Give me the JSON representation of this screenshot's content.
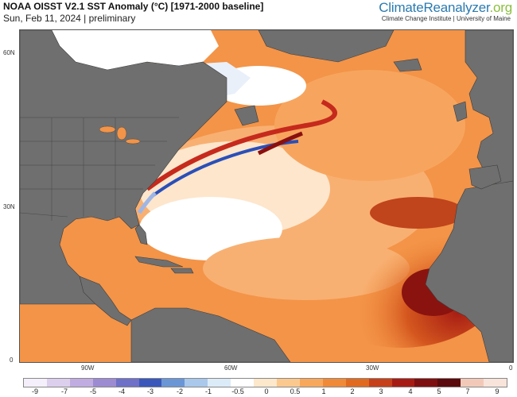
{
  "header": {
    "title": "NOAA OISST V2.1 SST Anomaly (°C) [1971-2000 baseline]",
    "subtitle": "Sun, Feb 11, 2024 | preliminary",
    "brand_main": "ClimateReanalyzer",
    "brand_suffix": ".org",
    "brand_sub": "Climate Change Institute | University of Maine"
  },
  "map": {
    "latitude_labels": [
      "60N",
      "30N",
      "0"
    ],
    "longitude_labels": [
      "90W",
      "60W",
      "30W",
      "0"
    ],
    "land_color": "#6f6f6f",
    "ice_color": "#ffffff"
  },
  "legend": {
    "labels": [
      "-9",
      "-7",
      "-5",
      "-4",
      "-3",
      "-2",
      "-1",
      "-0.5",
      "0",
      "0.5",
      "1",
      "2",
      "3",
      "4",
      "5",
      "7",
      "9"
    ],
    "colors": [
      "#f4effa",
      "#dccfee",
      "#c0ace0",
      "#9c8bd2",
      "#6f70c8",
      "#3a58bb",
      "#6a96d6",
      "#a9c8ec",
      "#dcebf8",
      "#ffffff",
      "#fde8cc",
      "#fbc98e",
      "#f8a85a",
      "#f18a38",
      "#e06a20",
      "#c6401a",
      "#a61c14",
      "#7e0f10",
      "#5a0a0c",
      "#f2c9b8",
      "#f8e4da"
    ]
  }
}
